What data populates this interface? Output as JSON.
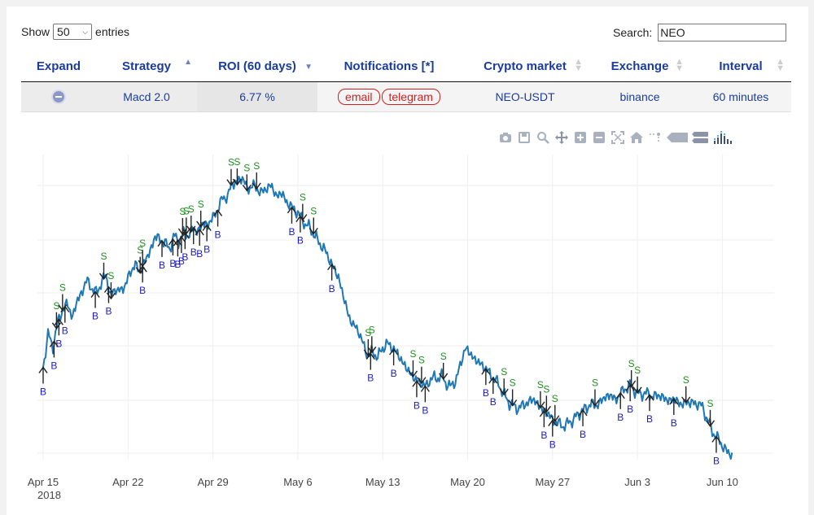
{
  "length_control": {
    "show_label": "Show",
    "entries_label": "entries",
    "page_size": "50"
  },
  "search": {
    "label": "Search:",
    "value": "NEO"
  },
  "table": {
    "headers": {
      "expand": "Expand",
      "strategy": "Strategy",
      "roi": "ROI (60 days)",
      "notifications": "Notifications [*]",
      "market": "Crypto market",
      "exchange": "Exchange",
      "interval": "Interval"
    },
    "row": {
      "strategy": "Macd 2.0",
      "roi": "6.77 %",
      "notifications": [
        "email",
        "telegram"
      ],
      "market": "NEO-USDT",
      "exchange": "binance",
      "interval": "60 minutes"
    }
  },
  "toolbar": {
    "icons": [
      "camera-icon",
      "save-icon",
      "zoom-icon",
      "pan-icon",
      "zoom-in-icon",
      "zoom-out-icon",
      "autoscale-icon",
      "reset-axes-icon",
      "spike-lines-icon",
      "hover-closest-icon",
      "hover-compare-icon",
      "plotly-logo-icon"
    ]
  },
  "chart_data": {
    "type": "line",
    "line_color": "#1f77b4",
    "x_ticks": [
      "Apr 15",
      "Apr 22",
      "Apr 29",
      "May 6",
      "May 13",
      "May 20",
      "May 27",
      "Jun 3",
      "Jun 10"
    ],
    "x_year_label": "2018",
    "grid": true,
    "series": [
      {
        "values": [
          0.45,
          0.62,
          0.55,
          0.68,
          0.74,
          0.78,
          0.7,
          0.79,
          0.83,
          0.9,
          0.85,
          0.83,
          0.88,
          0.92,
          0.8,
          0.86,
          0.83,
          0.88,
          0.93,
          0.98,
          0.93,
          1.0,
          1.03,
          1.12,
          1.1,
          1.09,
          1.05,
          1.12,
          1.09,
          1.14,
          1.12,
          1.16,
          1.14,
          1.19,
          1.17,
          1.22,
          1.25,
          1.32,
          1.31,
          1.4,
          1.38,
          1.43,
          1.35,
          1.38,
          1.36,
          1.34,
          1.36,
          1.38,
          1.32,
          1.34,
          1.3,
          1.27,
          1.25,
          1.22,
          1.18,
          1.16,
          1.12,
          1.08,
          1.05,
          1.0,
          0.95,
          0.9,
          0.8,
          0.71,
          0.66,
          0.64,
          0.56,
          0.51,
          0.53,
          0.5,
          0.55,
          0.57,
          0.55,
          0.52,
          0.48,
          0.44,
          0.41,
          0.38,
          0.37,
          0.35,
          0.4,
          0.39,
          0.41,
          0.37,
          0.35,
          0.38,
          0.46,
          0.55,
          0.52,
          0.49,
          0.47,
          0.45,
          0.42,
          0.39,
          0.36,
          0.31,
          0.27,
          0.25,
          0.24,
          0.26,
          0.27,
          0.29,
          0.26,
          0.23,
          0.22,
          0.18,
          0.17,
          0.15,
          0.16,
          0.18,
          0.2,
          0.23,
          0.24,
          0.27,
          0.25,
          0.28,
          0.3,
          0.31,
          0.28,
          0.32,
          0.34,
          0.36,
          0.33,
          0.31,
          0.32,
          0.31,
          0.3,
          0.31,
          0.29,
          0.28,
          0.29,
          0.27,
          0.26,
          0.28,
          0.26,
          0.27,
          0.24,
          0.18,
          0.12,
          0.09,
          0.05,
          0.02,
          0.0
        ]
      }
    ],
    "markers": {
      "buy_label": "B",
      "sell_label": "S",
      "buy_days": [
        0.0,
        0.9,
        1.3,
        1.8,
        4.3,
        5.4,
        8.2,
        9.8,
        10.7,
        11.1,
        11.4,
        11.7,
        12.4,
        12.9,
        13.5,
        14.4,
        20.5,
        21.2,
        23.8,
        27.0,
        28.9,
        30.8,
        31.5,
        36.5,
        37.1,
        41.3,
        42.0,
        44.5,
        47.6,
        48.4,
        50.0,
        52.0,
        55.5
      ],
      "sell_days": [
        1.1,
        1.6,
        5.0,
        5.6,
        8.0,
        8.2,
        11.5,
        11.8,
        12.2,
        13.0,
        15.5,
        16.0,
        16.8,
        17.6,
        21.4,
        22.3,
        26.8,
        27.1,
        30.5,
        31.2,
        33.0,
        38.0,
        38.7,
        41.0,
        41.5,
        42.2,
        45.5,
        48.5,
        49.0,
        53.0,
        55.0
      ]
    }
  }
}
